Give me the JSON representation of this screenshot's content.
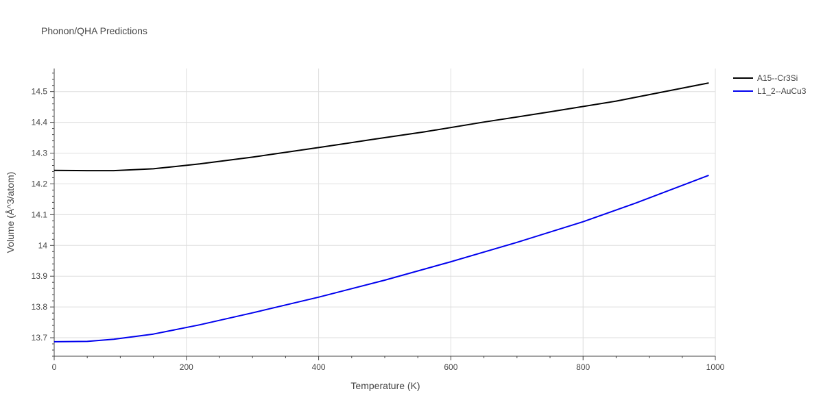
{
  "chart_data": {
    "type": "line",
    "title": "Phonon/QHA Predictions",
    "xlabel": "Temperature (K)",
    "ylabel": "Volume (Å^3/atom)",
    "xlim": [
      0,
      1000
    ],
    "ylim": [
      13.64,
      14.575
    ],
    "x_ticks": [
      0,
      200,
      400,
      600,
      800,
      1000
    ],
    "x_tick_labels": [
      "0",
      "200",
      "400",
      "600",
      "800",
      "1000"
    ],
    "y_ticks": [
      13.7,
      13.8,
      13.9,
      14.0,
      14.1,
      14.2,
      14.3,
      14.4,
      14.5
    ],
    "y_tick_labels": [
      "13.7",
      "13.8",
      "13.9",
      "14",
      "14.1",
      "14.2",
      "14.3",
      "14.4",
      "14.5"
    ],
    "grid": true,
    "legend_position": "right",
    "series": [
      {
        "name": "A15--Cr3Si",
        "color": "#000000",
        "x": [
          0,
          50,
          90,
          150,
          220,
          300,
          400,
          480,
          560,
          650,
          750,
          850,
          990
        ],
        "y": [
          14.244,
          14.243,
          14.243,
          14.249,
          14.265,
          14.287,
          14.318,
          14.344,
          14.369,
          14.401,
          14.434,
          14.469,
          14.528
        ]
      },
      {
        "name": "L1_2--AuCu3",
        "color": "#0000ee",
        "x": [
          0,
          50,
          90,
          150,
          220,
          300,
          400,
          500,
          600,
          700,
          800,
          880,
          990
        ],
        "y": [
          13.687,
          13.688,
          13.695,
          13.712,
          13.742,
          13.781,
          13.832,
          13.887,
          13.947,
          14.01,
          14.077,
          14.138,
          14.228
        ]
      }
    ]
  }
}
